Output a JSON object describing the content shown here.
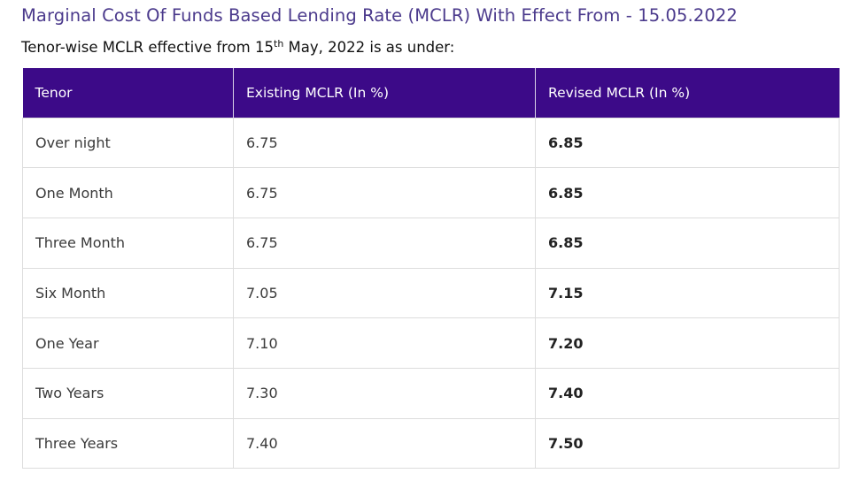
{
  "page": {
    "title": "Marginal Cost Of Funds Based Lending Rate (MCLR) With Effect From - 15.05.2022",
    "subtitle_prefix": "Tenor-wise MCLR effective from 15",
    "subtitle_sup": "th",
    "subtitle_suffix": " May, 2022 is as under:"
  },
  "table": {
    "headers": [
      "Tenor",
      "Existing MCLR (In %)",
      "Revised MCLR (In %)"
    ],
    "header_bg": "#3c0a88",
    "rows": [
      {
        "tenor": "Over night",
        "existing": "6.75",
        "revised": "6.85"
      },
      {
        "tenor": "One Month",
        "existing": "6.75",
        "revised": "6.85"
      },
      {
        "tenor": "Three Month",
        "existing": "6.75",
        "revised": "6.85"
      },
      {
        "tenor": "Six Month",
        "existing": "7.05",
        "revised": "7.15"
      },
      {
        "tenor": "One Year",
        "existing": "7.10",
        "revised": "7.20"
      },
      {
        "tenor": "Two Years",
        "existing": "7.30",
        "revised": "7.40"
      },
      {
        "tenor": "Three Years",
        "existing": "7.40",
        "revised": "7.50"
      }
    ]
  }
}
